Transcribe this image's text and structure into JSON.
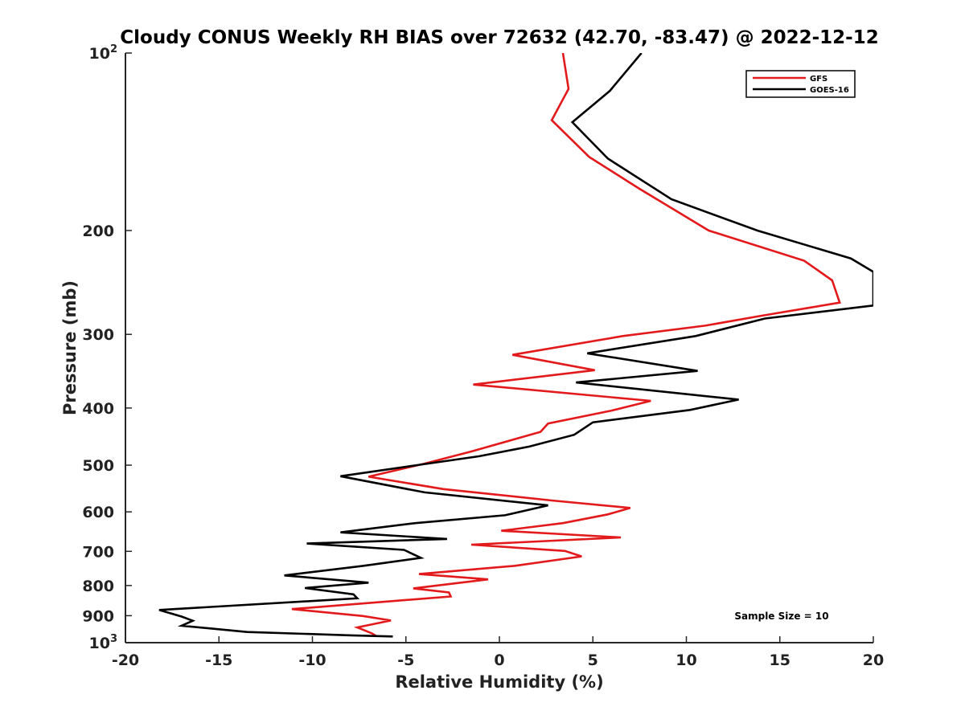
{
  "chart_data": {
    "type": "line",
    "title": "Cloudy CONUS Weekly RH BIAS over 72632 (42.70, -83.47) @ 2022-12-12",
    "xlabel": "Relative Humidity (%)",
    "ylabel": "Pressure (mb)",
    "xlim": [
      -20,
      20
    ],
    "ylim": [
      100,
      1000
    ],
    "yscale": "log",
    "y_reversed": true,
    "grid": false,
    "legend_position": "top-right",
    "x_ticks": [
      -20,
      -15,
      -10,
      -5,
      0,
      5,
      10,
      15,
      20
    ],
    "y_ticks": [
      {
        "value": 100,
        "label": "10",
        "sup": "2"
      },
      {
        "value": 200,
        "label": "200"
      },
      {
        "value": 300,
        "label": "300"
      },
      {
        "value": 400,
        "label": "400"
      },
      {
        "value": 500,
        "label": "500"
      },
      {
        "value": 600,
        "label": "600"
      },
      {
        "value": 700,
        "label": "700"
      },
      {
        "value": 800,
        "label": "800"
      },
      {
        "value": 900,
        "label": "900"
      },
      {
        "value": 1000,
        "label": "10",
        "sup": "3"
      }
    ],
    "series": [
      {
        "name": "GFS",
        "color": "#e31a1c",
        "points": [
          [
            3.4,
            100
          ],
          [
            3.7,
            115
          ],
          [
            2.8,
            130
          ],
          [
            4.8,
            150
          ],
          [
            7.5,
            170
          ],
          [
            11.2,
            200
          ],
          [
            16.3,
            225
          ],
          [
            17.8,
            243
          ],
          [
            18.2,
            265
          ],
          [
            14.0,
            279
          ],
          [
            11.0,
            290
          ],
          [
            6.6,
            302
          ],
          [
            0.7,
            325
          ],
          [
            5.1,
            345
          ],
          [
            -1.4,
            365
          ],
          [
            8.1,
            389
          ],
          [
            6.0,
            404
          ],
          [
            2.6,
            425
          ],
          [
            2.2,
            439
          ],
          [
            -1.5,
            474
          ],
          [
            -4.0,
            497
          ],
          [
            -7.0,
            523
          ],
          [
            -3.0,
            549
          ],
          [
            2.8,
            574
          ],
          [
            7.0,
            591
          ],
          [
            5.8,
            606
          ],
          [
            3.4,
            627
          ],
          [
            0.1,
            646
          ],
          [
            6.5,
            663
          ],
          [
            -1.5,
            682
          ],
          [
            3.5,
            699
          ],
          [
            4.4,
            714
          ],
          [
            0.8,
            741
          ],
          [
            -4.3,
            765
          ],
          [
            -0.6,
            781
          ],
          [
            -4.6,
            809
          ],
          [
            -2.7,
            822
          ],
          [
            -2.6,
            835
          ],
          [
            -11.1,
            877
          ],
          [
            -7.3,
            901
          ],
          [
            -5.8,
            917
          ],
          [
            -7.6,
            942
          ],
          [
            -6.8,
            965
          ],
          [
            -6.6,
            974
          ]
        ]
      },
      {
        "name": "GOES-16",
        "color": "#000000",
        "points": [
          [
            7.6,
            100
          ],
          [
            5.9,
            116
          ],
          [
            3.9,
            131
          ],
          [
            5.8,
            151
          ],
          [
            9.2,
            177
          ],
          [
            13.8,
            200
          ],
          [
            18.8,
            223
          ],
          [
            20.0,
            235
          ],
          [
            20.0,
            268
          ],
          [
            14.2,
            282
          ],
          [
            10.5,
            302
          ],
          [
            4.7,
            323
          ],
          [
            10.6,
            346
          ],
          [
            4.1,
            362
          ],
          [
            12.8,
            387
          ],
          [
            10.2,
            403
          ],
          [
            5.0,
            423
          ],
          [
            4.0,
            444
          ],
          [
            1.6,
            465
          ],
          [
            -1.1,
            483
          ],
          [
            -4.4,
            500
          ],
          [
            -8.5,
            522
          ],
          [
            -4.0,
            556
          ],
          [
            2.6,
            585
          ],
          [
            0.3,
            608
          ],
          [
            -4.5,
            627
          ],
          [
            -8.5,
            650
          ],
          [
            -2.8,
            667
          ],
          [
            -10.3,
            679
          ],
          [
            -5.1,
            696
          ],
          [
            -4.2,
            718
          ],
          [
            -7.3,
            741
          ],
          [
            -11.5,
            769
          ],
          [
            -7.0,
            791
          ],
          [
            -10.4,
            808
          ],
          [
            -7.8,
            828
          ],
          [
            -7.6,
            841
          ],
          [
            -18.2,
            880
          ],
          [
            -17.0,
            903
          ],
          [
            -16.4,
            918
          ],
          [
            -17.0,
            936
          ],
          [
            -13.5,
            959
          ],
          [
            -7.9,
            972
          ],
          [
            -5.7,
            976
          ]
        ]
      }
    ],
    "annotation": "Sample Size = 10"
  }
}
